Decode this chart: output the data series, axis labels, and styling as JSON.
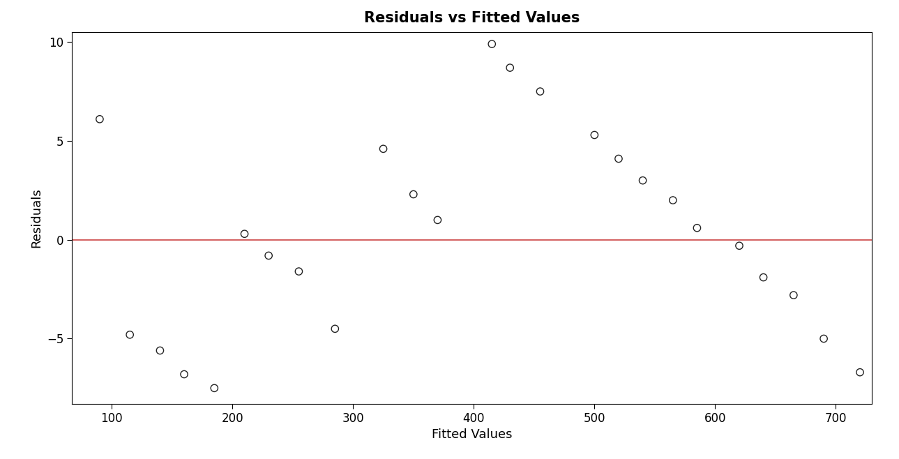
{
  "title": "Residuals vs Fitted Values",
  "xlabel": "Fitted Values",
  "ylabel": "Residuals",
  "fitted": [
    90,
    115,
    140,
    160,
    185,
    210,
    230,
    255,
    285,
    325,
    350,
    370,
    415,
    430,
    455,
    500,
    520,
    540,
    565,
    585,
    620,
    640,
    665,
    690,
    720
  ],
  "residuals": [
    6.1,
    -4.8,
    -5.6,
    -6.8,
    -7.5,
    0.3,
    -0.8,
    -1.6,
    -4.5,
    4.6,
    2.3,
    1.0,
    9.9,
    8.7,
    7.5,
    5.3,
    4.1,
    3.0,
    2.0,
    0.6,
    -0.3,
    -1.9,
    -2.8,
    -5.0,
    -6.7
  ],
  "point_color": "none",
  "point_edge_color": "#222222",
  "point_size": 55,
  "point_lw": 1.0,
  "line_color": "#cc4444",
  "line_width": 1.2,
  "xlim": [
    67,
    730
  ],
  "ylim": [
    -8.3,
    10.5
  ],
  "yticks": [
    -5,
    0,
    5,
    10
  ],
  "xticks": [
    100,
    200,
    300,
    400,
    500,
    600,
    700
  ],
  "bg_color": "#ffffff",
  "title_fontsize": 15,
  "label_fontsize": 13,
  "tick_fontsize": 12
}
